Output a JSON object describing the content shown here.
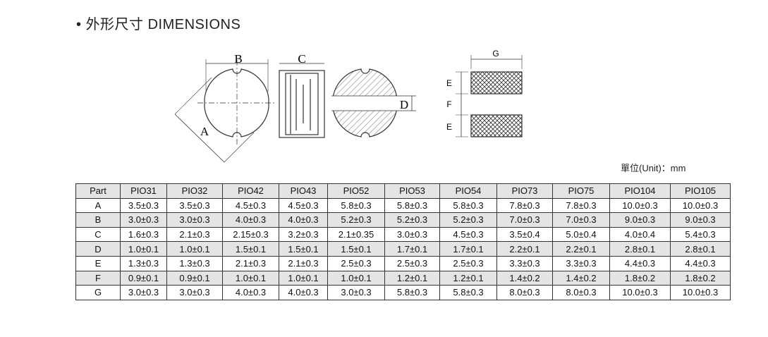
{
  "header": {
    "title": "外形尺寸 DIMENSIONS"
  },
  "diagram": {
    "labels": [
      "B",
      "C",
      "A",
      "D",
      "G",
      "E",
      "F",
      "E"
    ]
  },
  "unit_note": "單位(Unit)：mm",
  "table": {
    "header": [
      "Part",
      "PIO31",
      "PIO32",
      "PIO42",
      "PIO43",
      "PIO52",
      "PIO53",
      "PIO54",
      "PIO73",
      "PIO75",
      "PIO104",
      "PIO105"
    ],
    "rows": [
      [
        "A",
        "3.5±0.3",
        "3.5±0.3",
        "4.5±0.3",
        "4.5±0.3",
        "5.8±0.3",
        "5.8±0.3",
        "5.8±0.3",
        "7.8±0.3",
        "7.8±0.3",
        "10.0±0.3",
        "10.0±0.3"
      ],
      [
        "B",
        "3.0±0.3",
        "3.0±0.3",
        "4.0±0.3",
        "4.0±0.3",
        "5.2±0.3",
        "5.2±0.3",
        "5.2±0.3",
        "7.0±0.3",
        "7.0±0.3",
        "9.0±0.3",
        "9.0±0.3"
      ],
      [
        "C",
        "1.6±0.3",
        "2.1±0.3",
        "2.15±0.3",
        "3.2±0.3",
        "2.1±0.35",
        "3.0±0.3",
        "4.5±0.3",
        "3.5±0.4",
        "5.0±0.4",
        "4.0±0.4",
        "5.4±0.3"
      ],
      [
        "D",
        "1.0±0.1",
        "1.0±0.1",
        "1.5±0.1",
        "1.5±0.1",
        "1.5±0.1",
        "1.7±0.1",
        "1.7±0.1",
        "2.2±0.1",
        "2.2±0.1",
        "2.8±0.1",
        "2.8±0.1"
      ],
      [
        "E",
        "1.3±0.3",
        "1.3±0.3",
        "2.1±0.3",
        "2.1±0.3",
        "2.5±0.3",
        "2.5±0.3",
        "2.5±0.3",
        "3.3±0.3",
        "3.3±0.3",
        "4.4±0.3",
        "4.4±0.3"
      ],
      [
        "F",
        "0.9±0.1",
        "0.9±0.1",
        "1.0±0.1",
        "1.0±0.1",
        "1.0±0.1",
        "1.2±0.1",
        "1.2±0.1",
        "1.4±0.2",
        "1.4±0.2",
        "1.8±0.2",
        "1.8±0.2"
      ],
      [
        "G",
        "3.0±0.3",
        "3.0±0.3",
        "4.0±0.3",
        "4.0±0.3",
        "3.0±0.3",
        "5.8±0.3",
        "5.8±0.3",
        "8.0±0.3",
        "8.0±0.3",
        "10.0±0.3",
        "10.0±0.3"
      ]
    ]
  }
}
